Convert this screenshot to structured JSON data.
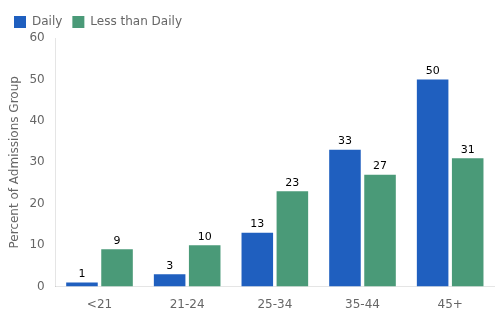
{
  "chart_data": {
    "type": "bar",
    "categories": [
      "<21",
      "21-24",
      "25-34",
      "35-44",
      "45+"
    ],
    "series": [
      {
        "name": "Daily",
        "color": "#1f5fbf",
        "values": [
          1,
          3,
          13,
          33,
          50
        ]
      },
      {
        "name": "Less than Daily",
        "color": "#4a9a78",
        "values": [
          9,
          10,
          23,
          27,
          31
        ]
      }
    ],
    "ylabel": "Percent of Admissions Group",
    "ylim": [
      0,
      60
    ],
    "yticks": [
      0,
      10,
      20,
      30,
      40,
      50,
      60
    ],
    "grid": false,
    "legend": "upper left",
    "data_labels": true
  }
}
